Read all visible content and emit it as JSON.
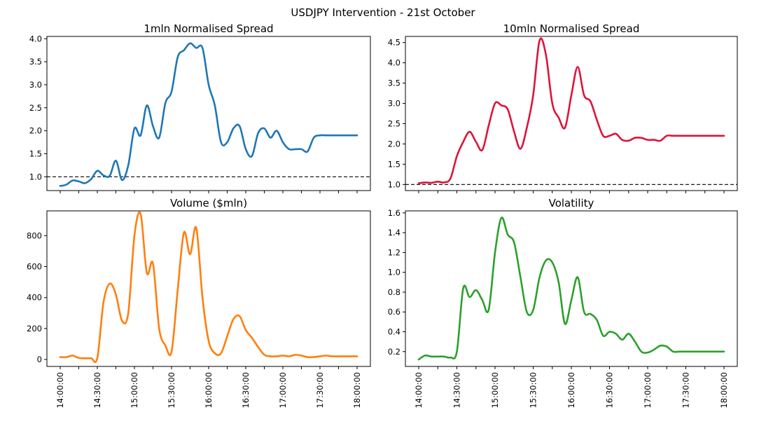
{
  "figure": {
    "suptitle": "USDJPY Intervention - 21st October"
  },
  "chart_data": [
    {
      "type": "line",
      "title": "1mln Normalised Spread",
      "xlabel": "",
      "ylabel": "",
      "color": "#1f77b4",
      "ylim": [
        0.7,
        4.05
      ],
      "yticks": [
        1.0,
        1.5,
        2.0,
        2.5,
        3.0,
        3.5,
        4.0
      ],
      "ytick_labels": [
        "1.0",
        "1.5",
        "2.0",
        "2.5",
        "3.0",
        "3.5",
        "4.0"
      ],
      "show_xtick_labels": false,
      "reference_line": 1.0,
      "series": [
        {
          "x": [
            "14:00",
            "14:05",
            "14:10",
            "14:15",
            "14:20",
            "14:25",
            "14:30",
            "14:35",
            "14:40",
            "14:45",
            "14:50",
            "14:55",
            "15:00",
            "15:05",
            "15:10",
            "15:15",
            "15:20",
            "15:25",
            "15:30",
            "15:35",
            "15:40",
            "15:45",
            "15:50",
            "15:55",
            "16:00",
            "16:05",
            "16:10",
            "16:15",
            "16:20",
            "16:25",
            "16:30",
            "16:35",
            "16:40",
            "16:45",
            "16:50",
            "16:55",
            "17:00",
            "17:05",
            "17:10",
            "17:15",
            "17:20",
            "17:25",
            "17:30",
            "17:35",
            "17:40",
            "17:45",
            "17:50",
            "17:55",
            "18:00"
          ],
          "values": [
            0.8,
            0.83,
            0.92,
            0.9,
            0.86,
            0.95,
            1.13,
            1.03,
            1.02,
            1.35,
            0.93,
            1.25,
            2.05,
            1.9,
            2.55,
            2.1,
            1.85,
            2.6,
            2.85,
            3.6,
            3.75,
            3.9,
            3.8,
            3.8,
            3.0,
            2.55,
            1.75,
            1.75,
            2.05,
            2.1,
            1.6,
            1.45,
            1.95,
            2.05,
            1.85,
            2.0,
            1.75,
            1.6,
            1.6,
            1.6,
            1.55,
            1.85,
            1.9,
            1.9,
            1.9,
            1.9,
            1.9,
            1.9,
            1.9
          ]
        }
      ]
    },
    {
      "type": "line",
      "title": "10mln Normalised Spread",
      "xlabel": "",
      "ylabel": "",
      "color": "#dc143c",
      "ylim": [
        0.85,
        4.65
      ],
      "yticks": [
        1.0,
        1.5,
        2.0,
        2.5,
        3.0,
        3.5,
        4.0,
        4.5
      ],
      "ytick_labels": [
        "1.0",
        "1.5",
        "2.0",
        "2.5",
        "3.0",
        "3.5",
        "4.0",
        "4.5"
      ],
      "show_xtick_labels": false,
      "reference_line": 1.0,
      "series": [
        {
          "x": [
            "14:00",
            "14:05",
            "14:10",
            "14:15",
            "14:20",
            "14:25",
            "14:30",
            "14:35",
            "14:40",
            "14:45",
            "14:50",
            "14:55",
            "15:00",
            "15:05",
            "15:10",
            "15:15",
            "15:20",
            "15:25",
            "15:30",
            "15:35",
            "15:40",
            "15:45",
            "15:50",
            "15:55",
            "16:00",
            "16:05",
            "16:10",
            "16:15",
            "16:20",
            "16:25",
            "16:30",
            "16:35",
            "16:40",
            "16:45",
            "16:50",
            "16:55",
            "17:00",
            "17:05",
            "17:10",
            "17:15",
            "17:20",
            "17:25",
            "17:30",
            "17:35",
            "17:40",
            "17:45",
            "17:50",
            "17:55",
            "18:00"
          ],
          "values": [
            1.03,
            1.05,
            1.04,
            1.07,
            1.05,
            1.15,
            1.7,
            2.05,
            2.3,
            2.05,
            1.85,
            2.45,
            3.0,
            2.95,
            2.85,
            2.3,
            1.88,
            2.4,
            3.2,
            4.55,
            4.2,
            3.0,
            2.65,
            2.4,
            3.2,
            3.9,
            3.2,
            3.05,
            2.6,
            2.2,
            2.2,
            2.25,
            2.1,
            2.08,
            2.15,
            2.15,
            2.1,
            2.1,
            2.08,
            2.2,
            2.2,
            2.2,
            2.2,
            2.2,
            2.2,
            2.2,
            2.2,
            2.2,
            2.2
          ]
        }
      ]
    },
    {
      "type": "line",
      "title": "Volume ($mln)",
      "xlabel": "",
      "ylabel": "",
      "color": "#ff7f0e",
      "ylim": [
        -45,
        960
      ],
      "yticks": [
        0,
        200,
        400,
        600,
        800
      ],
      "ytick_labels": [
        "0",
        "200",
        "400",
        "600",
        "800"
      ],
      "show_xtick_labels": true,
      "xtick_labels": [
        "14:00:00",
        "14:30:00",
        "15:00:00",
        "15:30:00",
        "16:00:00",
        "16:30:00",
        "17:00:00",
        "17:30:00",
        "18:00:00"
      ],
      "series": [
        {
          "x": [
            "14:00",
            "14:05",
            "14:10",
            "14:15",
            "14:20",
            "14:25",
            "14:30",
            "14:35",
            "14:40",
            "14:45",
            "14:50",
            "14:55",
            "15:00",
            "15:05",
            "15:10",
            "15:15",
            "15:20",
            "15:25",
            "15:30",
            "15:35",
            "15:40",
            "15:45",
            "15:50",
            "15:55",
            "16:00",
            "16:05",
            "16:10",
            "16:15",
            "16:20",
            "16:25",
            "16:30",
            "16:35",
            "16:40",
            "16:45",
            "16:50",
            "16:55",
            "17:00",
            "17:05",
            "17:10",
            "17:15",
            "17:20",
            "17:25",
            "17:30",
            "17:35",
            "17:40",
            "17:45",
            "17:50",
            "17:55",
            "18:00"
          ],
          "values": [
            15,
            15,
            25,
            10,
            8,
            8,
            10,
            370,
            490,
            420,
            250,
            300,
            800,
            940,
            560,
            620,
            200,
            90,
            50,
            450,
            820,
            680,
            850,
            400,
            120,
            40,
            40,
            150,
            260,
            280,
            190,
            140,
            80,
            30,
            20,
            20,
            25,
            20,
            30,
            25,
            15,
            15,
            20,
            25,
            20,
            20,
            20,
            20,
            20
          ]
        }
      ]
    },
    {
      "type": "line",
      "title": "Volatility",
      "xlabel": "",
      "ylabel": "",
      "color": "#2ca02c",
      "ylim": [
        0.05,
        1.62
      ],
      "yticks": [
        0.2,
        0.4,
        0.6,
        0.8,
        1.0,
        1.2,
        1.4,
        1.6
      ],
      "ytick_labels": [
        "0.2",
        "0.4",
        "0.6",
        "0.8",
        "1.0",
        "1.2",
        "1.4",
        "1.6"
      ],
      "show_xtick_labels": true,
      "xtick_labels": [
        "14:00:00",
        "14:30:00",
        "15:00:00",
        "15:30:00",
        "16:00:00",
        "16:30:00",
        "17:00:00",
        "17:30:00",
        "18:00:00"
      ],
      "series": [
        {
          "x": [
            "14:00",
            "14:05",
            "14:10",
            "14:15",
            "14:20",
            "14:25",
            "14:30",
            "14:35",
            "14:40",
            "14:45",
            "14:50",
            "14:55",
            "15:00",
            "15:05",
            "15:10",
            "15:15",
            "15:20",
            "15:25",
            "15:30",
            "15:35",
            "15:40",
            "15:45",
            "15:50",
            "15:55",
            "16:00",
            "16:05",
            "16:10",
            "16:15",
            "16:20",
            "16:25",
            "16:30",
            "16:35",
            "16:40",
            "16:45",
            "16:50",
            "16:55",
            "17:00",
            "17:05",
            "17:10",
            "17:15",
            "17:20",
            "17:25",
            "17:30",
            "17:35",
            "17:40",
            "17:45",
            "17:50",
            "17:55",
            "18:00"
          ],
          "values": [
            0.12,
            0.16,
            0.15,
            0.15,
            0.15,
            0.14,
            0.2,
            0.84,
            0.75,
            0.82,
            0.72,
            0.62,
            1.2,
            1.55,
            1.38,
            1.3,
            0.95,
            0.6,
            0.62,
            0.95,
            1.12,
            1.1,
            0.9,
            0.48,
            0.72,
            0.95,
            0.6,
            0.58,
            0.52,
            0.36,
            0.4,
            0.38,
            0.32,
            0.38,
            0.3,
            0.2,
            0.19,
            0.22,
            0.26,
            0.25,
            0.2,
            0.2,
            0.2,
            0.2,
            0.2,
            0.2,
            0.2,
            0.2,
            0.2
          ]
        }
      ]
    }
  ]
}
